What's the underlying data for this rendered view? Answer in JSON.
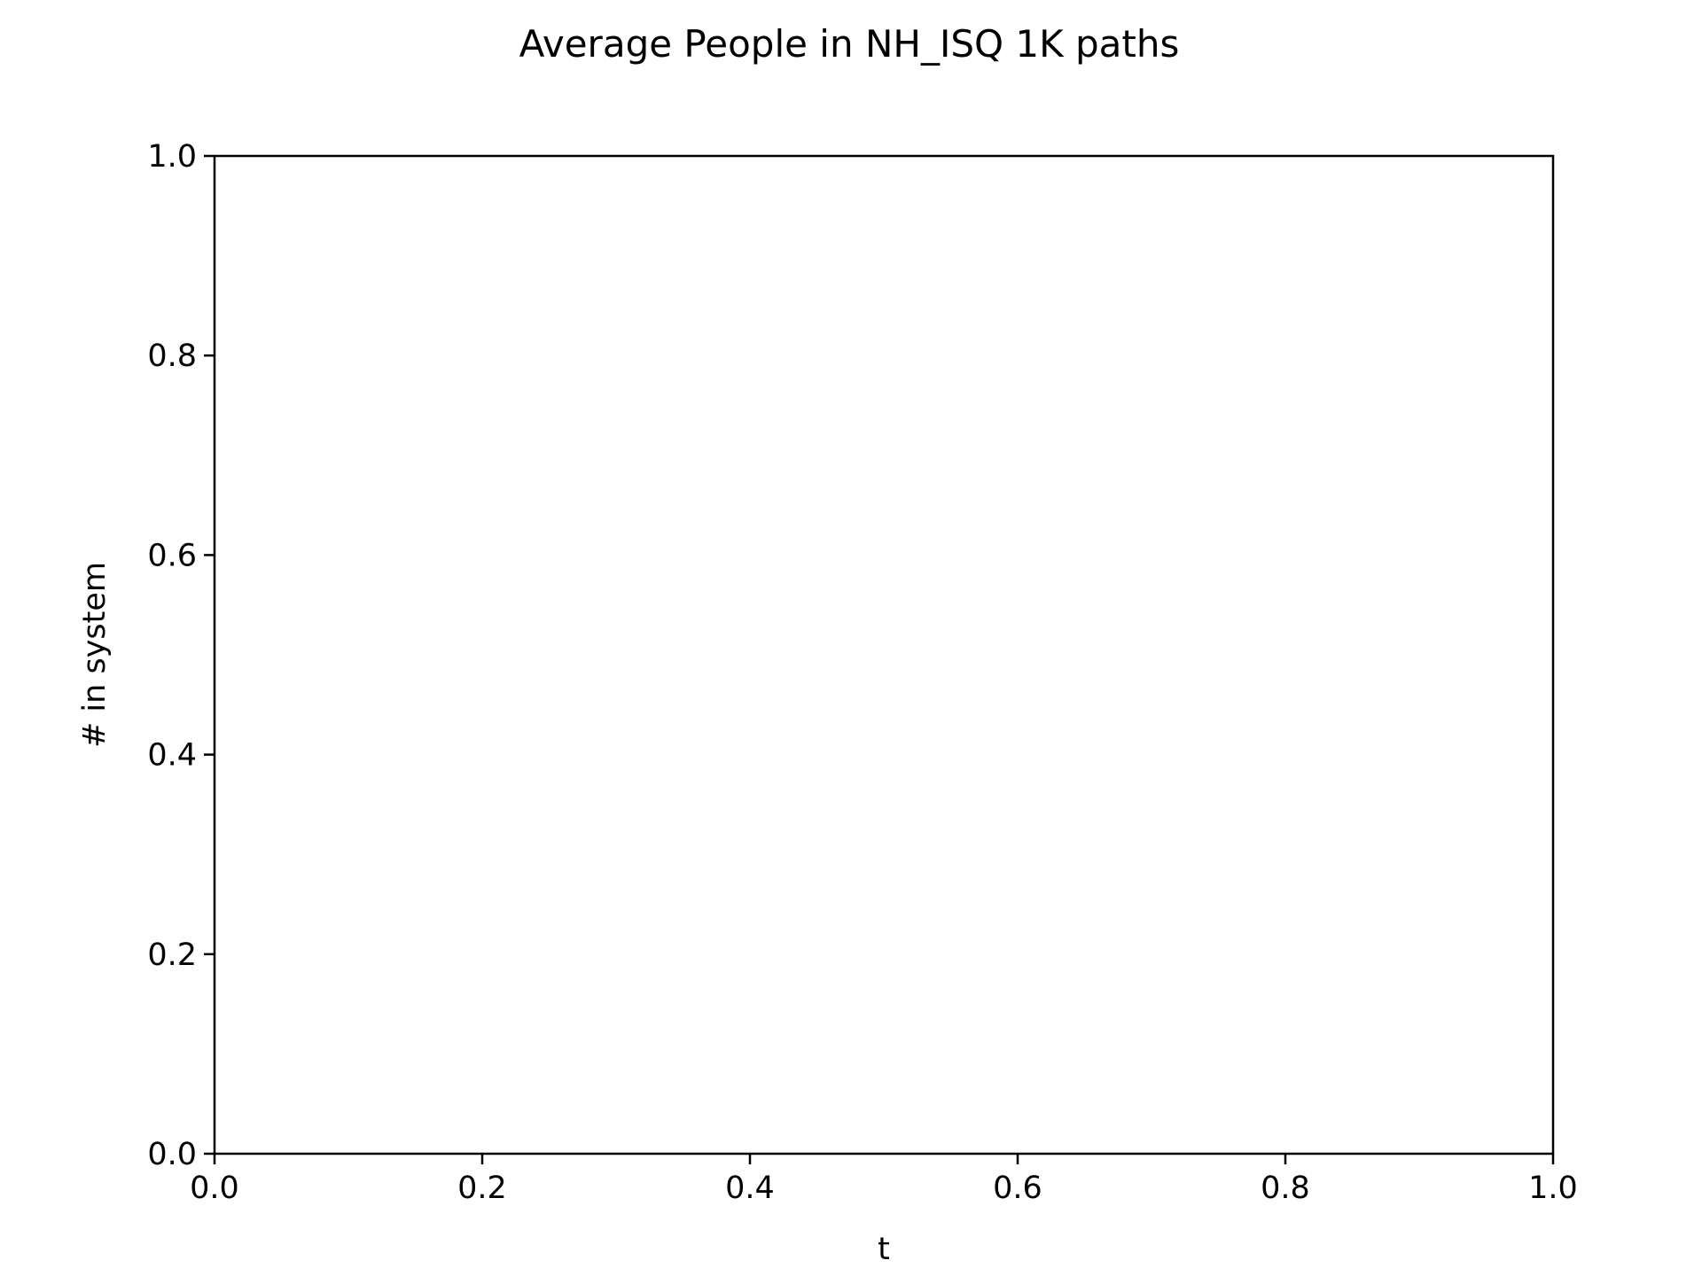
{
  "chart_data": {
    "type": "line",
    "title": "Average People in NH_ISQ 1K paths",
    "xlabel": "t",
    "ylabel": "# in system",
    "xlim": [
      0.0,
      1.0
    ],
    "ylim": [
      0.0,
      1.0
    ],
    "x_ticks": [
      "0.0",
      "0.2",
      "0.4",
      "0.6",
      "0.8",
      "1.0"
    ],
    "y_ticks": [
      "0.0",
      "0.2",
      "0.4",
      "0.6",
      "0.8",
      "1.0"
    ],
    "series": [],
    "grid": false,
    "legend": "none"
  }
}
